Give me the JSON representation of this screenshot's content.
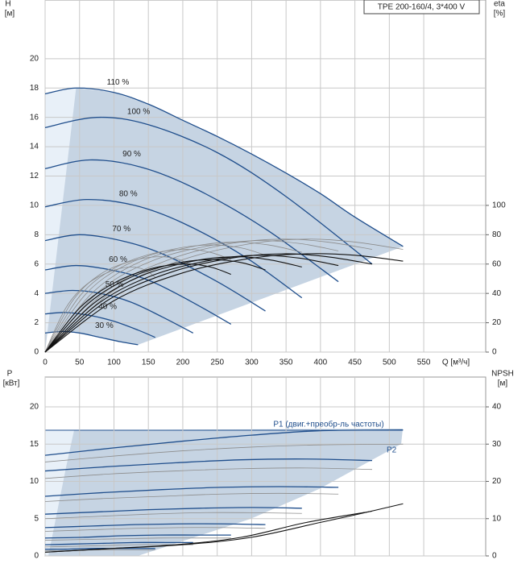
{
  "chart_data": [
    {
      "type": "line",
      "title": "TPE 200-160/4, 3*400 V",
      "ylabel": "H",
      "yunit": "[м]",
      "y2label": "eta",
      "y2unit": "[%]",
      "xlabel": "Q [м³/ч]",
      "xlim": [
        0,
        640
      ],
      "xticks": [
        0,
        50,
        100,
        150,
        200,
        250,
        300,
        350,
        400,
        450,
        500,
        550
      ],
      "ylim": [
        0,
        24
      ],
      "yticks": [
        0,
        2,
        4,
        6,
        8,
        10,
        12,
        14,
        16,
        18,
        20
      ],
      "y2lim": [
        0,
        240
      ],
      "y2ticks": [
        0,
        20,
        40,
        60,
        80,
        100
      ],
      "grid": true,
      "series": [
        {
          "label": "110 %",
          "color": "#1f4e8c",
          "x": [
            0,
            45,
            100,
            150,
            200,
            250,
            300,
            350,
            400,
            450,
            520
          ],
          "values": [
            17.6,
            18.0,
            17.7,
            16.9,
            15.8,
            14.7,
            13.5,
            12.2,
            10.8,
            9.2,
            7.2
          ]
        },
        {
          "label": "100 %",
          "color": "#1f4e8c",
          "x": [
            0,
            75,
            150,
            250,
            350,
            475
          ],
          "values": [
            15.3,
            16.0,
            15.5,
            13.6,
            10.6,
            6.0
          ]
        },
        {
          "label": "90 %",
          "color": "#1f4e8c",
          "x": [
            0,
            65,
            140,
            220,
            320,
            426
          ],
          "values": [
            12.5,
            13.1,
            12.6,
            11.1,
            8.4,
            4.8
          ]
        },
        {
          "label": "80 %",
          "color": "#1f4e8c",
          "x": [
            0,
            60,
            130,
            200,
            290,
            373
          ],
          "values": [
            9.9,
            10.4,
            10.0,
            8.8,
            6.5,
            3.7
          ]
        },
        {
          "label": "70 %",
          "color": "#1f4e8c",
          "x": [
            0,
            50,
            110,
            170,
            250,
            320
          ],
          "values": [
            7.6,
            8.0,
            7.6,
            6.7,
            4.8,
            2.8
          ]
        },
        {
          "label": "60 %",
          "color": "#1f4e8c",
          "x": [
            0,
            45,
            95,
            150,
            210,
            270
          ],
          "values": [
            5.6,
            5.9,
            5.6,
            4.9,
            3.5,
            1.9
          ]
        },
        {
          "label": "50 %",
          "color": "#1f4e8c",
          "x": [
            0,
            40,
            80,
            125,
            170,
            215
          ],
          "values": [
            4.0,
            4.2,
            4.0,
            3.4,
            2.4,
            1.3
          ]
        },
        {
          "label": "40 %",
          "color": "#1f4e8c",
          "x": [
            0,
            30,
            65,
            100,
            135,
            160
          ],
          "values": [
            2.6,
            2.7,
            2.5,
            2.1,
            1.5,
            1.0
          ]
        },
        {
          "label": "30 %",
          "color": "#1f4e8c",
          "x": [
            0,
            25,
            50,
            80,
            110,
            135
          ],
          "values": [
            1.3,
            1.4,
            1.3,
            1.0,
            0.7,
            0.5
          ]
        },
        {
          "color": "#8c8c8c",
          "axis": "y2",
          "x": [
            0,
            100,
            200,
            300,
            380,
            450,
            520
          ],
          "values": [
            0,
            42,
            63,
            74,
            77,
            75,
            70
          ]
        },
        {
          "color": "#8c8c8c",
          "axis": "y2",
          "x": [
            0,
            90,
            180,
            270,
            345,
            410,
            475
          ],
          "values": [
            0,
            42,
            63,
            74,
            77,
            75,
            70
          ]
        },
        {
          "color": "#8c8c8c",
          "axis": "y2",
          "x": [
            0,
            80,
            160,
            245,
            310,
            370,
            426
          ],
          "values": [
            0,
            42,
            63,
            73,
            76,
            74,
            69
          ]
        },
        {
          "color": "#8c8c8c",
          "axis": "y2",
          "x": [
            0,
            70,
            140,
            215,
            275,
            325,
            373
          ],
          "values": [
            0,
            41,
            62,
            72,
            75,
            73,
            68
          ]
        },
        {
          "color": "#8c8c8c",
          "axis": "y2",
          "x": [
            0,
            60,
            120,
            185,
            240,
            285,
            320
          ],
          "values": [
            0,
            40,
            60,
            70,
            73,
            71,
            66
          ]
        },
        {
          "color": "#8c8c8c",
          "axis": "y2",
          "x": [
            0,
            50,
            100,
            155,
            205,
            240,
            270
          ],
          "values": [
            0,
            38,
            57,
            67,
            70,
            68,
            63
          ]
        },
        {
          "color": "#8c8c8c",
          "axis": "y2",
          "x": [
            0,
            40,
            80,
            125,
            165,
            195,
            215
          ],
          "values": [
            0,
            35,
            53,
            62,
            65,
            63,
            58
          ]
        },
        {
          "color": "#8c8c8c",
          "axis": "y2",
          "x": [
            0,
            30,
            60,
            95,
            125,
            145,
            160
          ],
          "values": [
            0,
            30,
            46,
            55,
            58,
            56,
            51
          ]
        },
        {
          "color": "#111111",
          "axis": "y2",
          "x": [
            0,
            100,
            200,
            300,
            380,
            450,
            520
          ],
          "values": [
            0,
            35,
            54,
            64,
            67,
            66,
            62
          ]
        },
        {
          "color": "#111111",
          "axis": "y2",
          "x": [
            0,
            90,
            180,
            270,
            345,
            410,
            475
          ],
          "values": [
            0,
            35,
            54,
            64,
            67,
            65,
            60
          ]
        },
        {
          "color": "#111111",
          "axis": "y2",
          "x": [
            0,
            80,
            160,
            245,
            310,
            370,
            426
          ],
          "values": [
            0,
            34,
            53,
            63,
            66,
            64,
            59
          ]
        },
        {
          "color": "#111111",
          "axis": "y2",
          "x": [
            0,
            70,
            140,
            215,
            275,
            325,
            373
          ],
          "values": [
            0,
            33,
            52,
            62,
            65,
            63,
            58
          ]
        },
        {
          "color": "#111111",
          "axis": "y2",
          "x": [
            0,
            60,
            120,
            185,
            240,
            285,
            320
          ],
          "values": [
            0,
            32,
            50,
            60,
            63,
            61,
            56
          ]
        },
        {
          "color": "#111111",
          "axis": "y2",
          "x": [
            0,
            50,
            100,
            155,
            205,
            240,
            270
          ],
          "values": [
            0,
            30,
            47,
            57,
            60,
            58,
            53
          ]
        }
      ]
    },
    {
      "type": "line",
      "ylabel": "P",
      "yunit": "[кВт]",
      "y2label": "NPSH",
      "y2unit": "[м]",
      "annotations": [
        "P1 (двиг.+преобр-ль частоты)",
        "P2"
      ],
      "xlim": [
        0,
        640
      ],
      "ylim": [
        0,
        24
      ],
      "yticks": [
        0,
        5,
        10,
        15,
        20
      ],
      "y2lim": [
        0,
        48
      ],
      "y2ticks": [
        0,
        10,
        20,
        30,
        40
      ],
      "grid": true,
      "series": [
        {
          "color": "#1f4e8c",
          "x": [
            0,
            100,
            200,
            300,
            400,
            520
          ],
          "values": [
            13.5,
            14.5,
            15.4,
            16.2,
            16.8,
            16.9
          ]
        },
        {
          "color": "#1f4e8c",
          "x": [
            0,
            95,
            190,
            285,
            380,
            475
          ],
          "values": [
            11.4,
            12.0,
            12.5,
            12.9,
            13.0,
            12.8
          ]
        },
        {
          "color": "#1f4e8c",
          "x": [
            0,
            85,
            170,
            255,
            340,
            426
          ],
          "values": [
            8.0,
            8.5,
            8.9,
            9.2,
            9.3,
            9.2
          ]
        },
        {
          "color": "#1f4e8c",
          "x": [
            0,
            75,
            150,
            225,
            300,
            373
          ],
          "values": [
            5.6,
            5.9,
            6.2,
            6.4,
            6.5,
            6.4
          ]
        },
        {
          "color": "#1f4e8c",
          "x": [
            0,
            65,
            130,
            195,
            260,
            320
          ],
          "values": [
            3.8,
            4.0,
            4.2,
            4.3,
            4.3,
            4.2
          ]
        },
        {
          "color": "#1f4e8c",
          "x": [
            0,
            55,
            110,
            165,
            220,
            270
          ],
          "values": [
            2.4,
            2.5,
            2.7,
            2.8,
            2.8,
            2.8
          ]
        },
        {
          "color": "#1f4e8c",
          "x": [
            0,
            45,
            90,
            130,
            175,
            215
          ],
          "values": [
            1.5,
            1.6,
            1.7,
            1.8,
            1.8,
            1.8
          ]
        },
        {
          "color": "#1f4e8c",
          "x": [
            0,
            30,
            65,
            100,
            130,
            160
          ],
          "values": [
            0.9,
            0.9,
            1.0,
            1.0,
            1.0,
            1.0
          ]
        },
        {
          "color": "#8c8c8c",
          "x": [
            0,
            100,
            200,
            300,
            400,
            520
          ],
          "values": [
            12.6,
            13.4,
            14.1,
            14.6,
            14.9,
            15.0
          ]
        },
        {
          "color": "#8c8c8c",
          "x": [
            0,
            95,
            190,
            285,
            380,
            475
          ],
          "values": [
            10.4,
            11.0,
            11.4,
            11.7,
            11.8,
            11.6
          ]
        },
        {
          "color": "#8c8c8c",
          "x": [
            0,
            85,
            170,
            255,
            340,
            426
          ],
          "values": [
            7.3,
            7.7,
            8.0,
            8.3,
            8.4,
            8.3
          ]
        },
        {
          "color": "#8c8c8c",
          "x": [
            0,
            75,
            150,
            225,
            300,
            373
          ],
          "values": [
            5.0,
            5.3,
            5.6,
            5.8,
            5.8,
            5.7
          ]
        },
        {
          "color": "#8c8c8c",
          "x": [
            0,
            65,
            130,
            195,
            260,
            320
          ],
          "values": [
            3.3,
            3.5,
            3.7,
            3.8,
            3.8,
            3.7
          ]
        },
        {
          "color": "#8c8c8c",
          "x": [
            0,
            55,
            110,
            165,
            220,
            270
          ],
          "values": [
            2.1,
            2.2,
            2.3,
            2.4,
            2.4,
            2.4
          ]
        },
        {
          "color": "#8c8c8c",
          "x": [
            0,
            45,
            90,
            130,
            175,
            215
          ],
          "values": [
            1.2,
            1.3,
            1.4,
            1.5,
            1.5,
            1.5
          ]
        },
        {
          "color": "#8c8c8c",
          "x": [
            0,
            30,
            65,
            100,
            130,
            160
          ],
          "values": [
            0.7,
            0.7,
            0.8,
            0.8,
            0.8,
            0.8
          ]
        },
        {
          "color": "#111111",
          "axis": "y2",
          "x": [
            0,
            100,
            200,
            300,
            400,
            450,
            520
          ],
          "values": [
            1,
            2,
            3,
            5,
            9,
            11,
            14
          ]
        },
        {
          "color": "#111111",
          "axis": "y2",
          "x": [
            0,
            95,
            190,
            285,
            380,
            475
          ],
          "values": [
            1,
            2,
            3,
            5,
            9,
            12
          ]
        }
      ]
    }
  ]
}
